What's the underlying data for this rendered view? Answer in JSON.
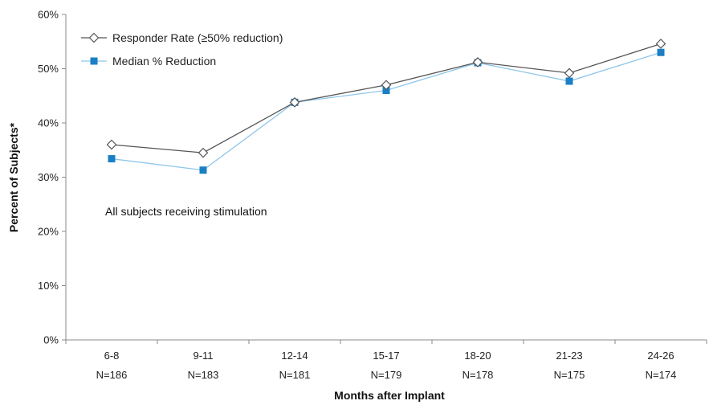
{
  "chart_data": {
    "type": "line",
    "categories": [
      "6-8",
      "9-11",
      "12-14",
      "15-17",
      "18-20",
      "21-23",
      "24-26"
    ],
    "category_sublabels": [
      "N=186",
      "N=183",
      "N=181",
      "N=179",
      "N=178",
      "N=175",
      "N=174"
    ],
    "series": [
      {
        "name": "Responder Rate (≥50% reduction)",
        "marker": "diamond-open",
        "color": "#555555",
        "values": [
          36,
          34.5,
          43.8,
          47,
          51.2,
          49.2,
          54.6
        ]
      },
      {
        "name": "Median % Reduction",
        "marker": "square-filled",
        "color": "#1a7fc4",
        "line_color": "#8ec6ea",
        "values": [
          33.4,
          31.3,
          43.8,
          46,
          51.1,
          47.7,
          53
        ]
      }
    ],
    "xlabel": "Months after Implant",
    "ylabel": "Percent of Subjects*",
    "ylim": [
      0,
      60
    ],
    "yticks": [
      0,
      10,
      20,
      30,
      40,
      50,
      60
    ],
    "ytick_labels": [
      "0%",
      "10%",
      "20%",
      "30%",
      "40%",
      "50%",
      "60%"
    ],
    "grid": false,
    "legend_position": "top-left",
    "annotation": "All subjects receiving stimulation"
  }
}
